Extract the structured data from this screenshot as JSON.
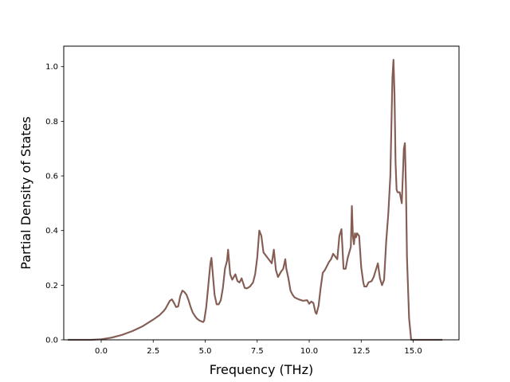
{
  "chart_data": {
    "type": "line",
    "title": "",
    "xlabel": "Frequency (THz)",
    "ylabel": "Partial Density of States",
    "xlim": [
      -1.8,
      17.2
    ],
    "ylim": [
      0.0,
      1.075
    ],
    "xticks": [
      0.0,
      2.5,
      5.0,
      7.5,
      10.0,
      12.5,
      15.0
    ],
    "xtick_labels": [
      "0.0",
      "2.5",
      "5.0",
      "7.5",
      "10.0",
      "12.5",
      "15.0"
    ],
    "yticks": [
      0.0,
      0.2,
      0.4,
      0.6,
      0.8,
      1.0
    ],
    "ytick_labels": [
      "0.0",
      "0.2",
      "0.4",
      "0.6",
      "0.8",
      "1.0"
    ],
    "grid": false,
    "legend": false,
    "series": [
      {
        "color": "#8c564b",
        "overlay_color": "#7f7f7f",
        "x": [
          -1.6,
          -0.5,
          0.0,
          0.5,
          1.0,
          1.5,
          2.0,
          2.5,
          2.8,
          3.0,
          3.1,
          3.3,
          3.4,
          3.5,
          3.6,
          3.7,
          3.8,
          3.9,
          4.0,
          4.1,
          4.2,
          4.3,
          4.4,
          4.5,
          4.6,
          4.7,
          4.8,
          4.9,
          4.95,
          5.05,
          5.15,
          5.25,
          5.3,
          5.35,
          5.45,
          5.55,
          5.65,
          5.75,
          5.85,
          5.95,
          6.05,
          6.1,
          6.2,
          6.3,
          6.45,
          6.55,
          6.65,
          6.75,
          6.9,
          7.0,
          7.15,
          7.3,
          7.4,
          7.5,
          7.6,
          7.7,
          7.8,
          7.9,
          8.0,
          8.2,
          8.3,
          8.4,
          8.5,
          8.65,
          8.75,
          8.85,
          8.9,
          9.0,
          9.1,
          9.2,
          9.3,
          9.5,
          9.7,
          9.9,
          10.0,
          10.1,
          10.2,
          10.3,
          10.35,
          10.45,
          10.55,
          10.65,
          10.75,
          10.85,
          10.95,
          11.05,
          11.15,
          11.25,
          11.35,
          11.45,
          11.55,
          11.65,
          11.75,
          11.85,
          12.0,
          12.05,
          12.1,
          12.15,
          12.2,
          12.25,
          12.3,
          12.4,
          12.5,
          12.6,
          12.65,
          12.75,
          12.85,
          13.0,
          13.1,
          13.2,
          13.3,
          13.4,
          13.5,
          13.6,
          13.7,
          13.8,
          13.9,
          14.0,
          14.05,
          14.1,
          14.15,
          14.2,
          14.25,
          14.35,
          14.45,
          14.55,
          14.6,
          14.65,
          14.7,
          14.8,
          14.9,
          15.0,
          16.4
        ],
        "values": [
          0.0,
          0.0,
          0.002,
          0.008,
          0.018,
          0.032,
          0.05,
          0.074,
          0.09,
          0.105,
          0.115,
          0.143,
          0.148,
          0.135,
          0.12,
          0.122,
          0.16,
          0.18,
          0.175,
          0.165,
          0.145,
          0.12,
          0.1,
          0.088,
          0.078,
          0.072,
          0.068,
          0.065,
          0.07,
          0.12,
          0.2,
          0.28,
          0.3,
          0.255,
          0.165,
          0.13,
          0.13,
          0.145,
          0.19,
          0.26,
          0.29,
          0.33,
          0.24,
          0.22,
          0.24,
          0.215,
          0.21,
          0.225,
          0.19,
          0.188,
          0.195,
          0.21,
          0.24,
          0.3,
          0.4,
          0.38,
          0.32,
          0.31,
          0.3,
          0.28,
          0.33,
          0.255,
          0.23,
          0.25,
          0.26,
          0.295,
          0.26,
          0.225,
          0.18,
          0.165,
          0.155,
          0.148,
          0.143,
          0.145,
          0.132,
          0.14,
          0.135,
          0.1,
          0.095,
          0.125,
          0.19,
          0.245,
          0.255,
          0.27,
          0.285,
          0.295,
          0.315,
          0.305,
          0.295,
          0.38,
          0.405,
          0.26,
          0.26,
          0.3,
          0.34,
          0.49,
          0.38,
          0.35,
          0.39,
          0.375,
          0.39,
          0.38,
          0.265,
          0.21,
          0.195,
          0.195,
          0.21,
          0.215,
          0.23,
          0.255,
          0.28,
          0.225,
          0.2,
          0.22,
          0.36,
          0.46,
          0.6,
          0.96,
          1.025,
          0.9,
          0.65,
          0.55,
          0.54,
          0.54,
          0.5,
          0.7,
          0.72,
          0.56,
          0.3,
          0.08,
          0.0,
          0.0,
          0.0
        ]
      }
    ]
  }
}
